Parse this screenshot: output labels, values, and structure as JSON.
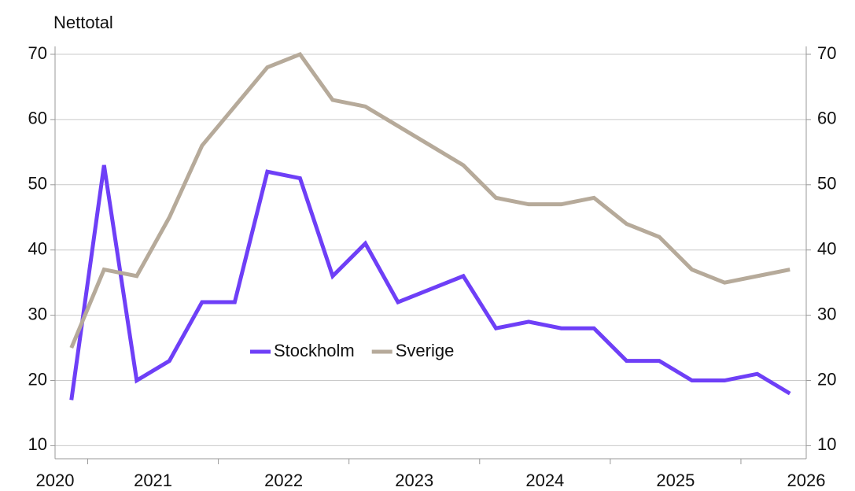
{
  "chart_data": {
    "type": "line",
    "y_axis_label": "Nettotal",
    "x": [
      2020.875,
      2021.125,
      2021.375,
      2021.625,
      2021.875,
      2022.125,
      2022.375,
      2022.625,
      2022.875,
      2023.125,
      2023.375,
      2023.625,
      2023.875,
      2024.125,
      2024.375,
      2024.625,
      2024.875,
      2025.125,
      2025.375,
      2025.625,
      2025.875,
      2026.125,
      2026.375
    ],
    "series": [
      {
        "name": "Stockholm",
        "color": "#6e3ff7",
        "values": [
          17,
          53,
          20,
          23,
          32,
          32,
          52,
          51,
          36,
          41,
          32,
          34,
          36,
          28,
          29,
          28,
          28,
          23,
          23,
          20,
          20,
          21,
          18
        ]
      },
      {
        "name": "Sverige",
        "color": "#b6aa9a",
        "values": [
          25,
          37,
          36,
          45,
          56,
          62,
          68,
          70,
          63,
          62,
          59,
          56,
          53,
          48,
          47,
          47,
          48,
          44,
          42,
          37,
          35,
          36,
          37
        ]
      }
    ],
    "xlim": [
      2020.75,
      2026.5
    ],
    "xticks": [
      {
        "value": 2020.75,
        "label": "2020"
      },
      {
        "value": 2021.5,
        "label": "2021"
      },
      {
        "value": 2022.5,
        "label": "2022"
      },
      {
        "value": 2023.5,
        "label": "2023"
      },
      {
        "value": 2024.5,
        "label": "2024"
      },
      {
        "value": 2025.5,
        "label": "2025"
      },
      {
        "value": 2026.5,
        "label": "2026"
      }
    ],
    "xtick_marks": [
      2021,
      2022,
      2023,
      2024,
      2025,
      2026
    ],
    "ylim": [
      8,
      70
    ],
    "yticks": [
      10,
      20,
      30,
      40,
      50,
      60,
      70
    ],
    "y2lim": [
      8,
      70
    ],
    "y2ticks": [
      10,
      20,
      30,
      40,
      50,
      60,
      70
    ],
    "grid": true
  }
}
